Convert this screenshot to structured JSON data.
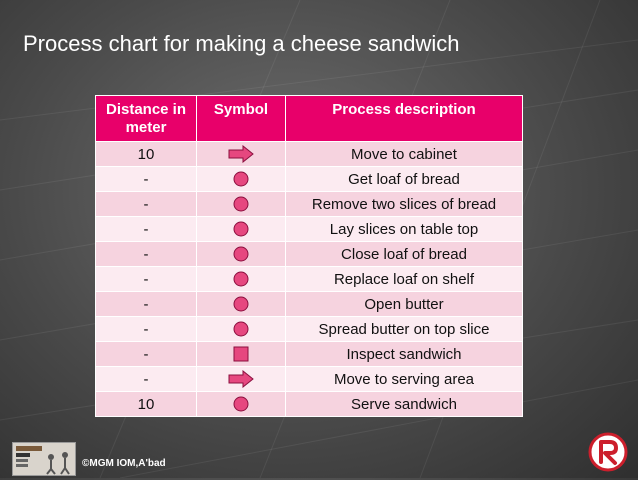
{
  "slide": {
    "title": "Process chart for making a cheese sandwich"
  },
  "table": {
    "headers": [
      "Distance in meter",
      "Symbol",
      "Process description"
    ],
    "rows": [
      {
        "distance": "10",
        "symbol": "arrow",
        "description": "Move to cabinet"
      },
      {
        "distance": "-",
        "symbol": "circle",
        "description": "Get loaf of bread"
      },
      {
        "distance": "-",
        "symbol": "circle",
        "description": "Remove two slices of bread"
      },
      {
        "distance": "-",
        "symbol": "circle",
        "description": "Lay slices on table top"
      },
      {
        "distance": "-",
        "symbol": "circle",
        "description": "Close loaf of bread"
      },
      {
        "distance": "-",
        "symbol": "circle",
        "description": "Replace loaf on shelf"
      },
      {
        "distance": "-",
        "symbol": "circle",
        "description": "Open butter"
      },
      {
        "distance": "-",
        "symbol": "circle",
        "description": "Spread butter on top slice"
      },
      {
        "distance": "-",
        "symbol": "square",
        "description": "Inspect sandwich"
      },
      {
        "distance": "-",
        "symbol": "arrow",
        "description": "Move to serving area"
      },
      {
        "distance": "10",
        "symbol": "circle",
        "description": "Serve sandwich"
      }
    ]
  },
  "footer": {
    "copyright": "©MGM IOM,A'bad"
  },
  "colors": {
    "header_bg": "#e8006a",
    "row_odd": "#f6d3df",
    "row_even": "#fcebf1",
    "symbol_fill": "#e6477f",
    "symbol_stroke": "#8b0f3e"
  },
  "icons": {
    "arrow": "transport-arrow-icon",
    "circle": "operation-circle-icon",
    "square": "inspection-square-icon",
    "logo": "r-logo-icon"
  }
}
